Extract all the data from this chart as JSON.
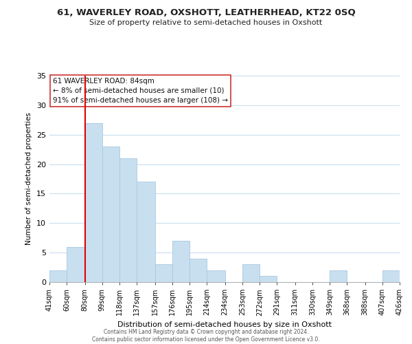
{
  "title": "61, WAVERLEY ROAD, OXSHOTT, LEATHERHEAD, KT22 0SQ",
  "subtitle": "Size of property relative to semi-detached houses in Oxshott",
  "xlabel": "Distribution of semi-detached houses by size in Oxshott",
  "ylabel": "Number of semi-detached properties",
  "bar_edges": [
    41,
    60,
    80,
    99,
    118,
    137,
    157,
    176,
    195,
    214,
    234,
    253,
    272,
    291,
    311,
    330,
    349,
    368,
    388,
    407,
    426
  ],
  "bar_heights": [
    2,
    6,
    27,
    23,
    21,
    17,
    3,
    7,
    4,
    2,
    0,
    3,
    1,
    0,
    0,
    0,
    2,
    0,
    0,
    2
  ],
  "bar_color": "#c8dff0",
  "bar_edge_color": "#a8c8e0",
  "vline_x": 80,
  "vline_color": "#dd0000",
  "ylim": [
    0,
    35
  ],
  "yticks": [
    0,
    5,
    10,
    15,
    20,
    25,
    30,
    35
  ],
  "annotation_title": "61 WAVERLEY ROAD: 84sqm",
  "annotation_line1": "← 8% of semi-detached houses are smaller (10)",
  "annotation_line2": "91% of semi-detached houses are larger (108) →",
  "footer_line1": "Contains HM Land Registry data © Crown copyright and database right 2024.",
  "footer_line2": "Contains public sector information licensed under the Open Government Licence v3.0.",
  "tick_labels": [
    "41sqm",
    "60sqm",
    "80sqm",
    "99sqm",
    "118sqm",
    "137sqm",
    "157sqm",
    "176sqm",
    "195sqm",
    "214sqm",
    "234sqm",
    "253sqm",
    "272sqm",
    "291sqm",
    "311sqm",
    "330sqm",
    "349sqm",
    "368sqm",
    "388sqm",
    "407sqm",
    "426sqm"
  ],
  "bg_color": "#ffffff",
  "grid_color": "#c8dff0"
}
